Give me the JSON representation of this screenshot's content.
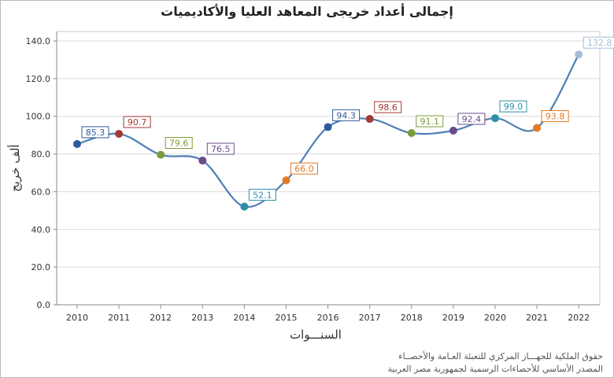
{
  "chart_data": {
    "type": "line",
    "title": "إجمالى أعداد خريجى المعاهد العليا والأكاديميات",
    "xlabel": "السنـــوات",
    "ylabel": "ألف خريج",
    "categories": [
      "2010",
      "2011",
      "2012",
      "2013",
      "2014",
      "2015",
      "2016",
      "2017",
      "2018",
      "2019",
      "2020",
      "2021",
      "2022"
    ],
    "values": [
      85.3,
      90.7,
      79.6,
      76.5,
      52.1,
      66.0,
      94.3,
      98.6,
      91.1,
      92.4,
      99.0,
      93.8,
      132.8
    ],
    "value_labels": [
      "85.3",
      "90.7",
      "79.6",
      "76.5",
      "52.1",
      "66.0",
      "94.3",
      "98.6",
      "91.1",
      "92.4",
      "99.0",
      "93.8",
      "132.8"
    ],
    "point_colors": [
      "#2e5b99",
      "#a33a36",
      "#7e9b3b",
      "#6b4c8c",
      "#2e8ea8",
      "#e07a23",
      "#2e5b99",
      "#a33a36",
      "#7e9b3b",
      "#6b4c8c",
      "#2e8ea8",
      "#e07a23",
      "#a8bcd8"
    ],
    "line_color": "#4f7fb5",
    "ylim": [
      0,
      145
    ],
    "yticks": [
      "0.0",
      "20.0",
      "40.0",
      "60.0",
      "80.0",
      "100.0",
      "120.0",
      "140.0"
    ],
    "ytick_values": [
      0,
      20,
      40,
      60,
      80,
      100,
      120,
      140
    ],
    "grid": true,
    "legend": "none"
  },
  "footnotes": {
    "line1": "حقوق الملكية للجهـــاز المركزي للتعبئة العـامة والأحصــاء",
    "line2": "المصدر الأساسي للأحصاءات الرسمية لجمهورية مصر العربية"
  }
}
